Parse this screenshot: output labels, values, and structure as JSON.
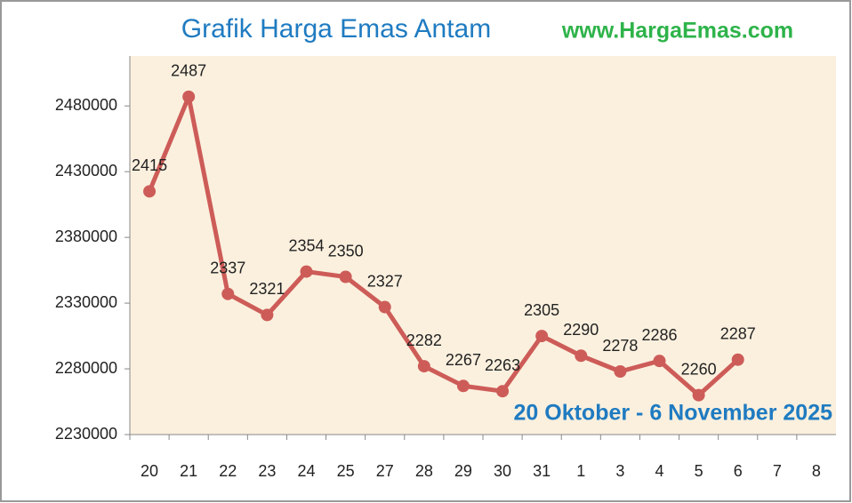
{
  "chart_data": {
    "type": "line",
    "title": "Grafik Harga Emas Antam",
    "website": "www.HargaEmas.com",
    "subtitle": "20 Oktober - 6 November 2025",
    "categories": [
      "20",
      "21",
      "22",
      "23",
      "24",
      "25",
      "27",
      "28",
      "29",
      "30",
      "31",
      "1",
      "3",
      "4",
      "5",
      "6",
      "7",
      "8"
    ],
    "series": [
      {
        "name": "Harga",
        "color": "#cd5c58",
        "values": [
          2415000,
          2487000,
          2337000,
          2321000,
          2354000,
          2350000,
          2327000,
          2282000,
          2267000,
          2263000,
          2305000,
          2290000,
          2278000,
          2286000,
          2260000,
          2287000,
          null,
          null
        ],
        "value_labels": [
          "2415",
          "2487",
          "2337",
          "2321",
          "2354",
          "2350",
          "2327",
          "2282",
          "2267",
          "2263",
          "2305",
          "2290",
          "2278",
          "2286",
          "2260",
          "2287",
          null,
          null
        ]
      }
    ],
    "ylim": [
      2230000,
      2518000
    ],
    "yticks": [
      2230000,
      2280000,
      2330000,
      2380000,
      2430000,
      2480000
    ],
    "grid": false
  }
}
